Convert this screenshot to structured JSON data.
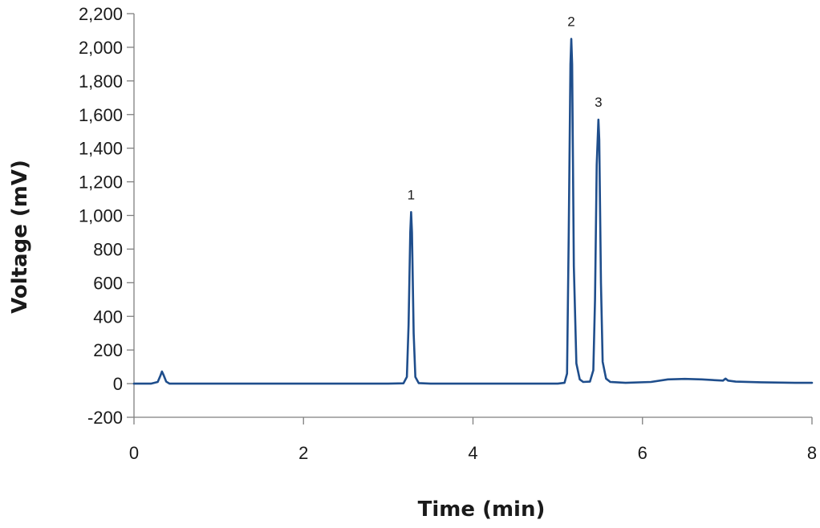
{
  "chart_data": {
    "type": "line",
    "title": "",
    "xlabel": "Time (min)",
    "ylabel": "Voltage (mV)",
    "xlim": [
      0,
      8
    ],
    "ylim": [
      -200,
      2200
    ],
    "x_ticks": [
      "0",
      "2",
      "4",
      "6",
      "8"
    ],
    "y_ticks": [
      "-200",
      "0",
      "200",
      "400",
      "600",
      "800",
      "1,000",
      "1,200",
      "1,400",
      "1,600",
      "1,800",
      "2,000",
      "2,200"
    ],
    "grid": false,
    "legend": "none",
    "line_color": "#1f4e8c",
    "series": [
      {
        "x": [
          0.0,
          0.2,
          0.28,
          0.31,
          0.33,
          0.35,
          0.38,
          0.42,
          1.0,
          2.0,
          3.0,
          3.18,
          3.22,
          3.24,
          3.26,
          3.27,
          3.28,
          3.3,
          3.32,
          3.36,
          3.5,
          4.0,
          4.5,
          5.0,
          5.08,
          5.11,
          5.13,
          5.15,
          5.16,
          5.17,
          5.19,
          5.22,
          5.26,
          5.3,
          5.38,
          5.42,
          5.44,
          5.46,
          5.48,
          5.49,
          5.51,
          5.53,
          5.57,
          5.62,
          5.8,
          6.1,
          6.3,
          6.5,
          6.7,
          6.95,
          6.98,
          7.01,
          7.1,
          7.4,
          7.8,
          8.0
        ],
        "y": [
          0,
          0,
          10,
          45,
          72,
          50,
          12,
          0,
          0,
          0,
          0,
          2,
          40,
          350,
          900,
          1020,
          900,
          300,
          40,
          3,
          0,
          0,
          0,
          0,
          5,
          60,
          900,
          1900,
          2050,
          1900,
          700,
          120,
          25,
          10,
          12,
          80,
          500,
          1300,
          1570,
          1450,
          600,
          130,
          30,
          10,
          5,
          10,
          25,
          28,
          25,
          18,
          30,
          18,
          12,
          8,
          5,
          5
        ]
      }
    ],
    "annotations": [
      {
        "text": "1",
        "x": 3.27,
        "y": 1020
      },
      {
        "text": "2",
        "x": 5.16,
        "y": 2050
      },
      {
        "text": "3",
        "x": 5.48,
        "y": 1570
      }
    ]
  }
}
